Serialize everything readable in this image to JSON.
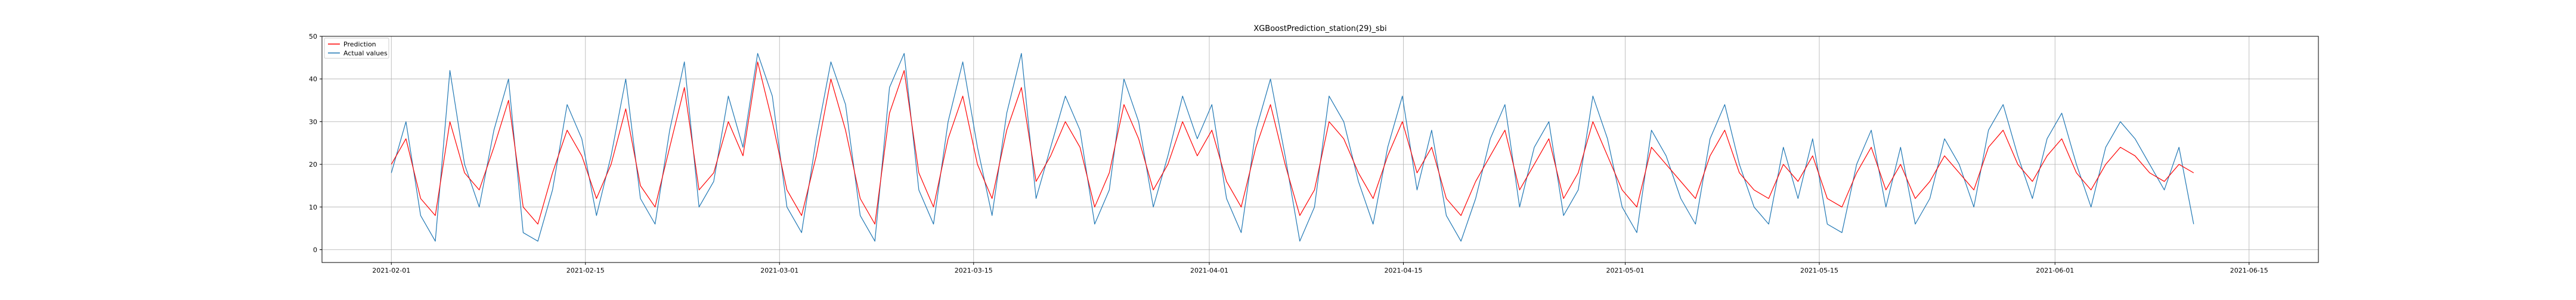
{
  "chart_data": {
    "type": "line",
    "title": "XGBoostPrediction_station(29)_sbi",
    "xlabel": "",
    "ylabel": "",
    "grid": true,
    "legend_placement": "top-left",
    "xlim": [
      "2021-01-27",
      "2021-06-20"
    ],
    "ylim": [
      -3,
      50
    ],
    "x_ticks": [
      "2021-02-01",
      "2021-02-15",
      "2021-03-01",
      "2021-03-15",
      "2021-04-01",
      "2021-04-15",
      "2021-05-01",
      "2021-05-15",
      "2021-06-01",
      "2021-06-15"
    ],
    "y_ticks": [
      0,
      10,
      20,
      30,
      40,
      50
    ],
    "x_start": "2021-02-01",
    "x_end": "2021-06-11",
    "series": [
      {
        "name": "Prediction",
        "color": "#ff0000",
        "values": [
          20,
          26,
          12,
          8,
          30,
          18,
          14,
          24,
          35,
          10,
          6,
          18,
          28,
          22,
          12,
          20,
          33,
          15,
          10,
          24,
          38,
          14,
          18,
          30,
          22,
          44,
          30,
          14,
          8,
          22,
          40,
          28,
          12,
          6,
          32,
          42,
          18,
          10,
          26,
          36,
          20,
          12,
          28,
          38,
          16,
          22,
          30,
          24,
          10,
          18,
          34,
          26,
          14,
          20,
          30,
          22,
          28,
          16,
          10,
          24,
          34,
          20,
          8,
          14,
          30,
          26,
          18,
          12,
          22,
          30,
          18,
          24,
          12,
          8,
          16,
          22,
          28,
          14,
          20,
          26,
          12,
          18,
          30,
          22,
          14,
          10,
          24,
          20,
          16,
          12,
          22,
          28,
          18,
          14,
          12,
          20,
          16,
          22,
          12,
          10,
          18,
          24,
          14,
          20,
          12,
          16,
          22,
          18,
          14,
          24,
          28,
          20,
          16,
          22,
          26,
          18,
          14,
          20,
          24,
          22,
          18,
          16,
          20,
          18
        ]
      },
      {
        "name": "Actual values",
        "color": "#1f77b4",
        "values": [
          18,
          30,
          8,
          2,
          42,
          20,
          10,
          28,
          40,
          4,
          2,
          14,
          34,
          26,
          8,
          22,
          40,
          12,
          6,
          28,
          44,
          10,
          16,
          36,
          24,
          46,
          36,
          10,
          4,
          26,
          44,
          34,
          8,
          2,
          38,
          46,
          14,
          6,
          30,
          44,
          24,
          8,
          32,
          46,
          12,
          24,
          36,
          28,
          6,
          14,
          40,
          30,
          10,
          22,
          36,
          26,
          34,
          12,
          4,
          28,
          40,
          22,
          2,
          10,
          36,
          30,
          16,
          6,
          24,
          36,
          14,
          28,
          8,
          2,
          12,
          26,
          34,
          10,
          24,
          30,
          8,
          14,
          36,
          26,
          10,
          4,
          28,
          22,
          12,
          6,
          26,
          34,
          20,
          10,
          6,
          24,
          12,
          26,
          6,
          4,
          20,
          28,
          10,
          24,
          6,
          12,
          26,
          20,
          10,
          28,
          34,
          22,
          12,
          26,
          32,
          20,
          10,
          24,
          30,
          26,
          20,
          14,
          24,
          6
        ]
      }
    ]
  }
}
